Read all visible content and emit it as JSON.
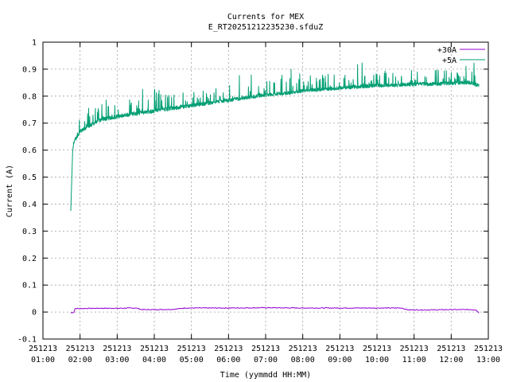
{
  "chart_data": {
    "type": "line",
    "title": "Currents for MEX",
    "subtitle": "E_RT20251212235230.sfduZ",
    "xlabel": "Time (yymmdd HH:MM)",
    "ylabel": "Current (A)",
    "xlim": [
      "251213 01:00",
      "251213 13:00"
    ],
    "ylim": [
      -0.1,
      1
    ],
    "grid": true,
    "legend_position": "top-right",
    "x_ticks": [
      {
        "date": "251213",
        "time": "01:00"
      },
      {
        "date": "251213",
        "time": "02:00"
      },
      {
        "date": "251213",
        "time": "03:00"
      },
      {
        "date": "251213",
        "time": "04:00"
      },
      {
        "date": "251213",
        "time": "05:00"
      },
      {
        "date": "251213",
        "time": "06:00"
      },
      {
        "date": "251213",
        "time": "07:00"
      },
      {
        "date": "251213",
        "time": "08:00"
      },
      {
        "date": "251213",
        "time": "09:00"
      },
      {
        "date": "251213",
        "time": "10:00"
      },
      {
        "date": "251213",
        "time": "11:00"
      },
      {
        "date": "251213",
        "time": "12:00"
      },
      {
        "date": "251213",
        "time": "13:00"
      }
    ],
    "y_ticks": [
      "-0.1",
      "0",
      "0.1",
      "0.2",
      "0.3",
      "0.4",
      "0.5",
      "0.6",
      "0.7",
      "0.8",
      "0.9",
      "1"
    ],
    "series": [
      {
        "name": "+30A",
        "color": "#9400d3",
        "x": [
          "251213 01:45",
          "251213 01:50",
          "251213 01:52",
          "251213 02:30",
          "251213 03:00",
          "251213 03:30",
          "251213 03:40",
          "251213 04:00",
          "251213 04:30",
          "251213 04:50",
          "251213 05:30",
          "251213 06:00",
          "251213 07:00",
          "251213 08:00",
          "251213 09:00",
          "251213 10:00",
          "251213 10:40",
          "251213 10:50",
          "251213 11:30",
          "251213 12:00",
          "251213 12:30",
          "251213 12:40",
          "251213 12:45"
        ],
        "values": [
          -0.003,
          -0.001,
          0.013,
          0.014,
          0.014,
          0.015,
          0.009,
          0.009,
          0.01,
          0.015,
          0.015,
          0.015,
          0.016,
          0.015,
          0.015,
          0.015,
          0.015,
          0.008,
          0.008,
          0.009,
          0.009,
          0.008,
          -0.003
        ]
      },
      {
        "name": "+5A",
        "color": "#009e73",
        "x": [
          "251213 01:45",
          "251213 01:47",
          "251213 01:48",
          "251213 01:50",
          "251213 02:00",
          "251213 02:15",
          "251213 02:30",
          "251213 03:00",
          "251213 03:30",
          "251213 04:00",
          "251213 04:30",
          "251213 05:00",
          "251213 05:30",
          "251213 06:00",
          "251213 06:30",
          "251213 07:00",
          "251213 07:30",
          "251213 08:00",
          "251213 08:30",
          "251213 09:00",
          "251213 09:30",
          "251213 10:00",
          "251213 10:30",
          "251213 11:00",
          "251213 11:30",
          "251213 12:00",
          "251213 12:30",
          "251213 12:45"
        ],
        "values": [
          0.375,
          0.59,
          0.6,
          0.63,
          0.67,
          0.69,
          0.71,
          0.725,
          0.735,
          0.745,
          0.755,
          0.765,
          0.775,
          0.785,
          0.795,
          0.805,
          0.81,
          0.82,
          0.825,
          0.83,
          0.835,
          0.84,
          0.84,
          0.845,
          0.845,
          0.848,
          0.85,
          0.84
        ]
      }
    ]
  }
}
